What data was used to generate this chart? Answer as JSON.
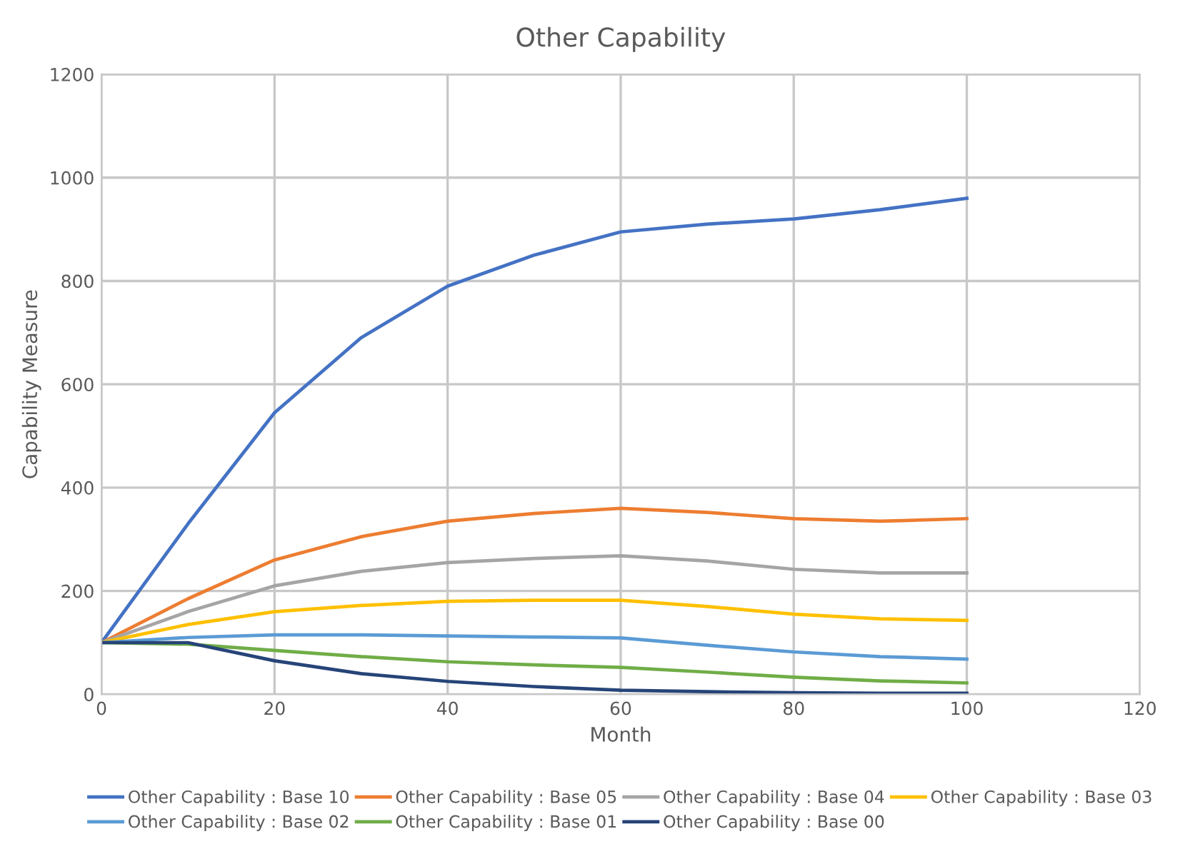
{
  "chart_data": {
    "type": "line",
    "title": "Other Capability",
    "xlabel": "Month",
    "ylabel": "Capability Measure",
    "x": [
      0,
      10,
      20,
      30,
      40,
      50,
      60,
      70,
      80,
      90,
      100
    ],
    "series": [
      {
        "name": "Other Capability : Base 10",
        "color": "#4472c4",
        "values": [
          100,
          330,
          545,
          690,
          790,
          850,
          895,
          910,
          920,
          938,
          960
        ]
      },
      {
        "name": "Other Capability : Base 05",
        "color": "#ed7d31",
        "values": [
          100,
          185,
          260,
          305,
          335,
          350,
          360,
          352,
          340,
          335,
          340
        ]
      },
      {
        "name": "Other Capability : Base 04",
        "color": "#a5a5a5",
        "values": [
          100,
          160,
          210,
          238,
          255,
          263,
          268,
          258,
          242,
          235,
          235
        ]
      },
      {
        "name": "Other Capability : Base 03",
        "color": "#ffc000",
        "values": [
          100,
          135,
          160,
          172,
          180,
          182,
          182,
          170,
          155,
          146,
          143
        ]
      },
      {
        "name": "Other Capability : Base 02",
        "color": "#5b9bd5",
        "values": [
          100,
          110,
          115,
          115,
          113,
          111,
          109,
          95,
          82,
          73,
          68
        ]
      },
      {
        "name": "Other Capability : Base 01",
        "color": "#70ad47",
        "values": [
          100,
          97,
          85,
          73,
          63,
          57,
          52,
          43,
          33,
          26,
          22
        ]
      },
      {
        "name": "Other Capability : Base 00",
        "color": "#264478",
        "values": [
          100,
          100,
          65,
          40,
          25,
          15,
          8,
          5,
          3,
          2,
          2
        ]
      }
    ],
    "xlim": [
      0,
      120
    ],
    "xticks": [
      0,
      20,
      40,
      60,
      80,
      100,
      120
    ],
    "ylim": [
      0,
      1200
    ],
    "yticks": [
      0,
      200,
      400,
      600,
      800,
      1000,
      1200
    ],
    "grid": true,
    "legend": "bottom",
    "marker": "none",
    "line_style": "solid"
  }
}
